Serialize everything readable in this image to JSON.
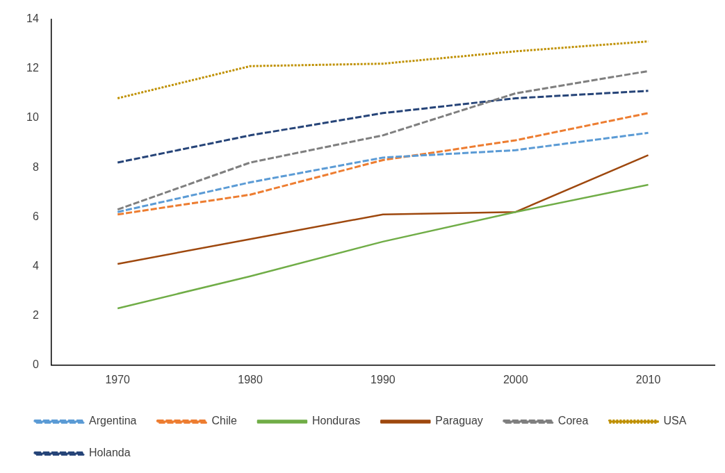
{
  "chart_data": {
    "type": "line",
    "categories": [
      "1970",
      "1980",
      "1990",
      "2000",
      "2010"
    ],
    "series": [
      {
        "name": "Argentina",
        "color": "#5b9bd5",
        "line_style": "dashed",
        "values": [
          6.2,
          7.4,
          8.4,
          8.7,
          9.4
        ]
      },
      {
        "name": "Chile",
        "color": "#ed7d31",
        "line_style": "dashed",
        "values": [
          6.1,
          6.9,
          8.3,
          9.1,
          10.2
        ]
      },
      {
        "name": "Honduras",
        "color": "#70ad47",
        "line_style": "solid",
        "values": [
          2.3,
          3.6,
          5.0,
          6.2,
          7.3
        ]
      },
      {
        "name": "Paraguay",
        "color": "#9e480e",
        "line_style": "solid",
        "values": [
          4.1,
          5.1,
          6.1,
          6.2,
          8.5
        ]
      },
      {
        "name": "Corea",
        "color": "#7f7f7f",
        "line_style": "dashed",
        "values": [
          6.3,
          8.2,
          9.3,
          11.0,
          11.9
        ]
      },
      {
        "name": "USA",
        "color": "#bf9000",
        "line_style": "dotted",
        "values": [
          10.8,
          12.1,
          12.2,
          12.7,
          13.1
        ]
      },
      {
        "name": "Holanda",
        "color": "#264478",
        "line_style": "dashed",
        "values": [
          8.2,
          9.3,
          10.2,
          10.8,
          11.1
        ]
      }
    ],
    "ylim": [
      0,
      14
    ],
    "yticks": [
      0,
      2,
      4,
      6,
      8,
      10,
      12,
      14
    ],
    "grid": false,
    "legend": "bottom",
    "marker": "none"
  }
}
